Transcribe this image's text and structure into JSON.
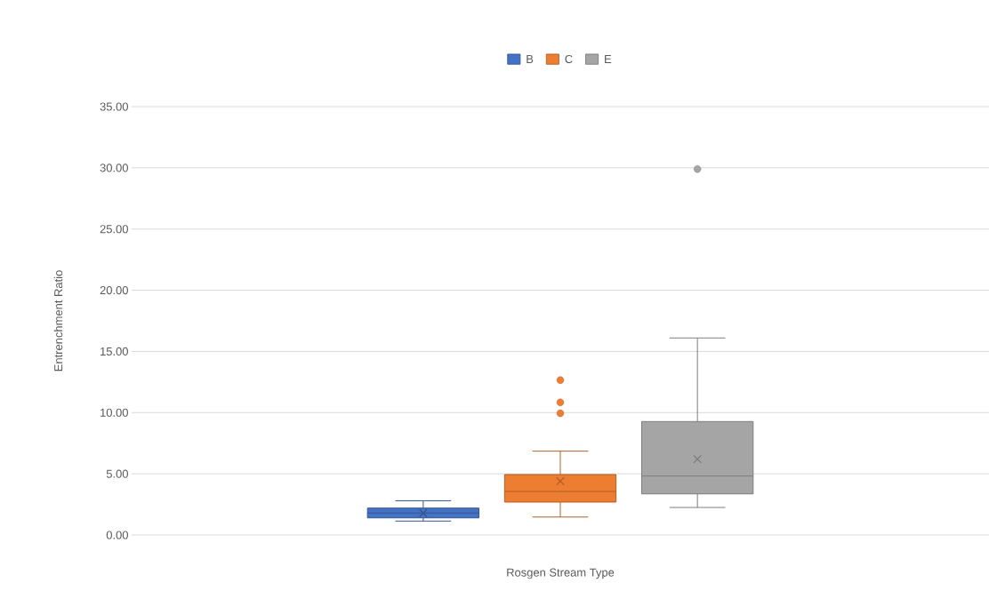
{
  "chart_data": {
    "type": "box",
    "xlabel": "Rosgen Stream Type",
    "ylabel": "Entrenchment Ratio",
    "categories": [
      null
    ],
    "series": [
      {
        "name": "B",
        "color": "#4472c4",
        "boxes": [
          {
            "low": 1.14,
            "q1": 1.4,
            "median": 1.8,
            "q3": 2.2,
            "high": 2.8,
            "mean": 1.8
          }
        ]
      },
      {
        "name": "C",
        "color": "#ed7d31",
        "boxes": [
          {
            "low": 1.47,
            "q1": 2.69,
            "median": 3.56,
            "q3": 4.94,
            "high": 6.85,
            "mean": 4.4,
            "outliers": [
              9.95,
              10.84,
              12.66
            ]
          }
        ]
      },
      {
        "name": "E",
        "color": "#a5a5a5",
        "boxes": [
          {
            "low": 2.25,
            "q1": 3.36,
            "median": 4.82,
            "q3": 9.27,
            "high": 16.1,
            "mean": 6.2,
            "outliers": [
              29.9
            ]
          }
        ]
      }
    ],
    "ylim": [
      0,
      35
    ],
    "yticks": [
      {
        "value": 0,
        "label": "0.00"
      },
      {
        "value": 5,
        "label": "5.00"
      },
      {
        "value": 10,
        "label": "10.00"
      },
      {
        "value": 15,
        "label": "15.00"
      },
      {
        "value": 20,
        "label": "20.00"
      },
      {
        "value": 25,
        "label": "25.00"
      },
      {
        "value": 30,
        "label": "30.00"
      },
      {
        "value": 35,
        "label": "35.00"
      }
    ],
    "grid": "y",
    "legend": "top"
  }
}
